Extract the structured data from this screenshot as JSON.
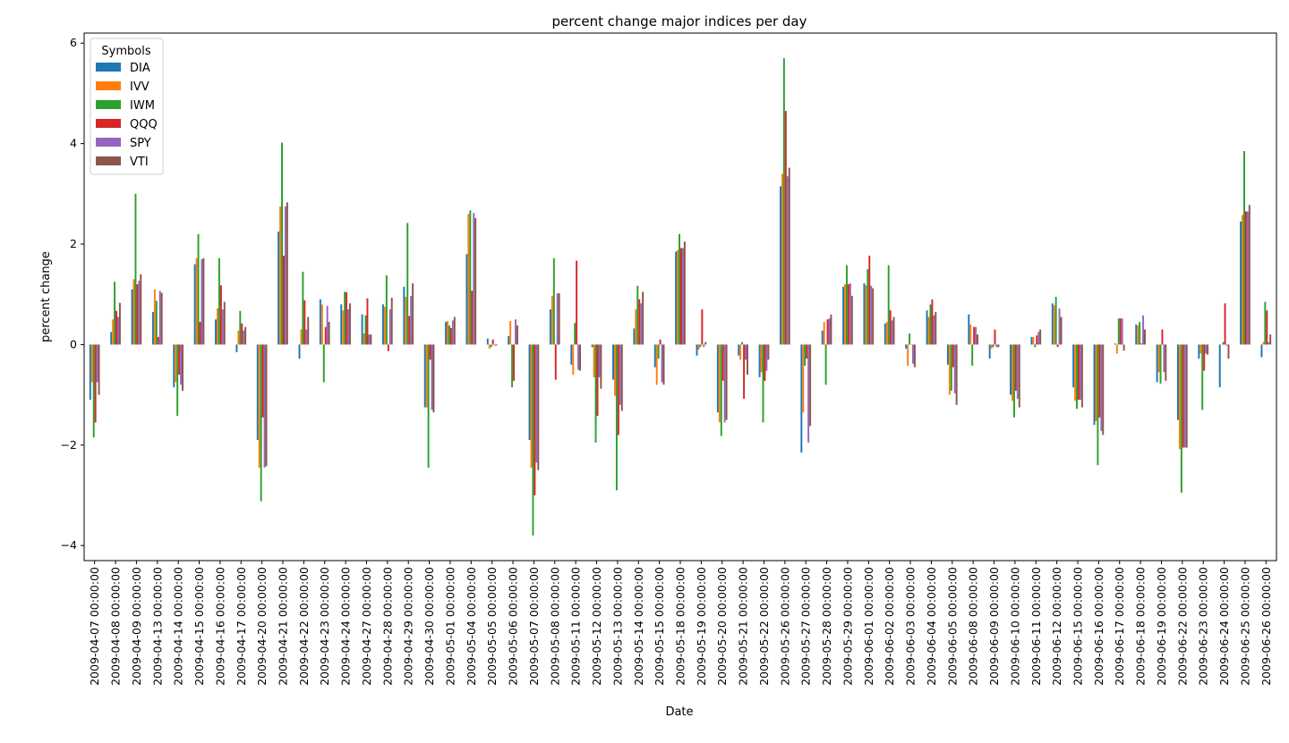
{
  "chart_data": {
    "type": "bar",
    "title": "percent change major indices per day",
    "xlabel": "Date",
    "ylabel": "percent change",
    "ylim": [
      -4.3,
      6.2
    ],
    "yticks": [
      -4,
      -2,
      0,
      2,
      4,
      6
    ],
    "grid": false,
    "legend": {
      "title": "Symbols",
      "position": "top-left"
    },
    "categories": [
      "2009-04-07 00:00:00",
      "2009-04-08 00:00:00",
      "2009-04-09 00:00:00",
      "2009-04-13 00:00:00",
      "2009-04-14 00:00:00",
      "2009-04-15 00:00:00",
      "2009-04-16 00:00:00",
      "2009-04-17 00:00:00",
      "2009-04-20 00:00:00",
      "2009-04-21 00:00:00",
      "2009-04-22 00:00:00",
      "2009-04-23 00:00:00",
      "2009-04-24 00:00:00",
      "2009-04-27 00:00:00",
      "2009-04-28 00:00:00",
      "2009-04-29 00:00:00",
      "2009-04-30 00:00:00",
      "2009-05-01 00:00:00",
      "2009-05-04 00:00:00",
      "2009-05-05 00:00:00",
      "2009-05-06 00:00:00",
      "2009-05-07 00:00:00",
      "2009-05-08 00:00:00",
      "2009-05-11 00:00:00",
      "2009-05-12 00:00:00",
      "2009-05-13 00:00:00",
      "2009-05-14 00:00:00",
      "2009-05-15 00:00:00",
      "2009-05-18 00:00:00",
      "2009-05-19 00:00:00",
      "2009-05-20 00:00:00",
      "2009-05-21 00:00:00",
      "2009-05-22 00:00:00",
      "2009-05-26 00:00:00",
      "2009-05-27 00:00:00",
      "2009-05-28 00:00:00",
      "2009-05-29 00:00:00",
      "2009-06-01 00:00:00",
      "2009-06-02 00:00:00",
      "2009-06-03 00:00:00",
      "2009-06-04 00:00:00",
      "2009-06-05 00:00:00",
      "2009-06-08 00:00:00",
      "2009-06-09 00:00:00",
      "2009-06-10 00:00:00",
      "2009-06-11 00:00:00",
      "2009-06-12 00:00:00",
      "2009-06-15 00:00:00",
      "2009-06-16 00:00:00",
      "2009-06-17 00:00:00",
      "2009-06-18 00:00:00",
      "2009-06-19 00:00:00",
      "2009-06-22 00:00:00",
      "2009-06-23 00:00:00",
      "2009-06-24 00:00:00",
      "2009-06-25 00:00:00",
      "2009-06-26 00:00:00"
    ],
    "series": [
      {
        "name": "DIA",
        "color": "#1f77b4",
        "values": [
          -1.1,
          0.25,
          1.1,
          0.65,
          -0.85,
          1.6,
          0.5,
          -0.15,
          -1.9,
          2.25,
          -0.28,
          0.9,
          0.8,
          0.6,
          0.8,
          1.15,
          -1.25,
          0.45,
          1.8,
          0.12,
          0.17,
          -1.9,
          0.7,
          -0.4,
          -0.05,
          -0.7,
          0.32,
          -0.45,
          1.85,
          -0.22,
          -1.35,
          -0.22,
          -0.65,
          3.15,
          -2.15,
          0.28,
          1.15,
          1.22,
          0.42,
          -0.08,
          0.68,
          -0.4,
          0.6,
          -0.28,
          -1.0,
          0.15,
          0.82,
          -0.85,
          -1.6,
          0.02,
          0.4,
          -0.75,
          -1.5,
          -0.28,
          -0.85,
          2.45,
          -0.25
        ]
      },
      {
        "name": "IVV",
        "color": "#ff7f0e",
        "values": [
          -0.75,
          0.5,
          1.3,
          1.1,
          -0.75,
          1.72,
          0.72,
          0.28,
          -2.45,
          2.75,
          0.3,
          0.8,
          0.68,
          0.22,
          0.75,
          0.95,
          -1.25,
          0.47,
          2.6,
          -0.08,
          0.47,
          -2.45,
          0.97,
          -0.6,
          -0.65,
          -1.02,
          0.7,
          -0.8,
          1.88,
          -0.1,
          -1.55,
          -0.3,
          -0.55,
          3.4,
          -1.35,
          0.45,
          1.2,
          1.18,
          0.45,
          -0.42,
          0.55,
          -1.0,
          0.4,
          -0.08,
          -1.12,
          0.15,
          0.78,
          -1.12,
          -1.52,
          -0.18,
          0.38,
          -0.55,
          -2.08,
          -0.18,
          0.0,
          2.58,
          0.05
        ]
      },
      {
        "name": "IWM",
        "color": "#2ca02c",
        "values": [
          -1.85,
          1.25,
          3.0,
          0.87,
          -1.42,
          2.2,
          1.72,
          0.67,
          -3.12,
          4.02,
          1.45,
          -0.75,
          1.05,
          0.58,
          1.38,
          2.42,
          -2.45,
          0.38,
          2.67,
          -0.05,
          -0.85,
          -3.8,
          1.72,
          0.43,
          -1.95,
          -2.9,
          1.17,
          -0.28,
          2.2,
          -0.05,
          -1.82,
          0.05,
          -1.55,
          5.7,
          -0.42,
          -0.8,
          1.58,
          1.5,
          1.58,
          0.22,
          0.8,
          -0.92,
          -0.42,
          -0.05,
          -1.45,
          -0.05,
          0.95,
          -1.28,
          -2.4,
          0.52,
          0.45,
          -0.78,
          -2.95,
          -1.3,
          0.05,
          3.85,
          0.85
        ]
      },
      {
        "name": "QQQ",
        "color": "#d62728",
        "values": [
          -1.55,
          0.67,
          1.2,
          0.15,
          -0.6,
          0.45,
          1.18,
          0.42,
          -1.45,
          1.77,
          0.88,
          0.35,
          1.04,
          0.92,
          -0.13,
          0.57,
          -0.3,
          0.33,
          1.07,
          0.1,
          -0.72,
          -3.0,
          -0.7,
          1.67,
          -1.42,
          -1.8,
          0.9,
          0.1,
          1.92,
          0.7,
          -0.72,
          -1.08,
          -0.72,
          4.65,
          -0.28,
          0.5,
          1.2,
          1.77,
          0.68,
          0.0,
          0.9,
          -0.45,
          0.35,
          0.3,
          -0.92,
          0.18,
          -0.05,
          -1.1,
          -1.45,
          0.52,
          0.02,
          0.3,
          -2.05,
          -0.52,
          0.82,
          2.65,
          0.68
        ]
      },
      {
        "name": "SPY",
        "color": "#9467bd",
        "values": [
          -0.75,
          0.55,
          1.27,
          1.07,
          -0.8,
          1.7,
          0.7,
          0.28,
          -2.45,
          2.75,
          0.3,
          0.77,
          0.7,
          0.2,
          0.7,
          0.97,
          -1.3,
          0.48,
          2.62,
          -0.02,
          0.5,
          -2.35,
          1.02,
          -0.5,
          -0.65,
          -1.2,
          0.82,
          -0.75,
          1.92,
          -0.05,
          -1.55,
          -0.3,
          -0.52,
          3.35,
          -1.95,
          0.52,
          1.22,
          1.17,
          0.48,
          -0.38,
          0.58,
          -0.97,
          0.35,
          -0.05,
          -1.08,
          0.25,
          0.72,
          -1.1,
          -1.72,
          0.52,
          0.58,
          -0.55,
          -2.05,
          -0.18,
          -0.02,
          2.65,
          0.05
        ]
      },
      {
        "name": "VTI",
        "color": "#8c564b",
        "values": [
          -1.0,
          0.83,
          1.4,
          1.03,
          -0.92,
          1.72,
          0.85,
          0.35,
          -2.42,
          2.83,
          0.55,
          0.45,
          0.82,
          0.2,
          0.93,
          1.22,
          -1.35,
          0.55,
          2.52,
          -0.02,
          0.38,
          -2.5,
          1.02,
          -0.52,
          -0.88,
          -1.32,
          1.05,
          -0.8,
          2.05,
          0.05,
          -1.5,
          -0.6,
          -0.3,
          3.52,
          -1.62,
          0.6,
          0.97,
          1.12,
          0.55,
          -0.45,
          0.65,
          -1.2,
          0.2,
          -0.05,
          -1.25,
          0.3,
          0.55,
          -1.25,
          -1.8,
          -0.12,
          0.3,
          -0.72,
          -2.05,
          -0.2,
          -0.28,
          2.78,
          0.2
        ]
      }
    ]
  }
}
